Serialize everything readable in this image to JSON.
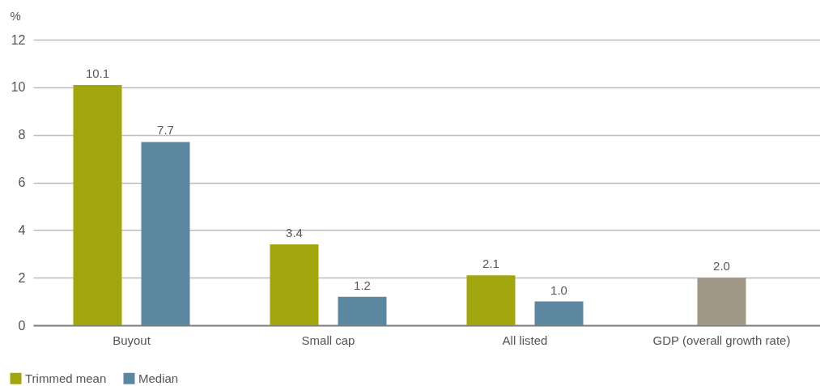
{
  "chart_data": {
    "type": "bar",
    "ylabel": "%",
    "categories": [
      "Buyout",
      "Small cap",
      "All listed",
      "GDP (overall growth rate)"
    ],
    "series": [
      {
        "name": "Trimmed mean",
        "color": "#a2a60e",
        "values": [
          10.1,
          3.4,
          2.1,
          null
        ],
        "value_labels": [
          "10.1",
          "3.4",
          "2.1",
          null
        ]
      },
      {
        "name": "Median",
        "color": "#5b87a0",
        "values": [
          7.7,
          1.2,
          1.0,
          null
        ],
        "value_labels": [
          "7.7",
          "1.2",
          "1.0",
          null
        ]
      },
      {
        "color": "#a09787",
        "values": [
          null,
          null,
          null,
          2.0
        ],
        "value_labels": [
          null,
          null,
          null,
          "2.0"
        ]
      }
    ],
    "ylim": [
      0,
      12
    ],
    "yticks": [
      0,
      2,
      4,
      6,
      8,
      10,
      12
    ],
    "grid": "y",
    "legend": "bottom left"
  }
}
